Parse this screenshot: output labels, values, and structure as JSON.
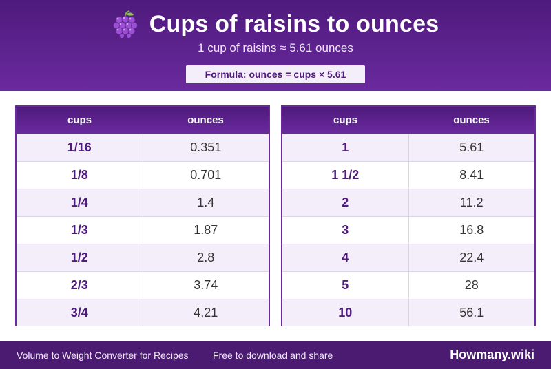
{
  "header": {
    "title": "Cups of raisins to ounces",
    "subtitle": "1 cup of raisins ≈ 5.61 ounces",
    "formula": "Formula: ounces = cups × 5.61",
    "icon": "grapes-icon"
  },
  "table_left": {
    "headers": [
      "cups",
      "ounces"
    ],
    "rows": [
      [
        "1/16",
        "0.351"
      ],
      [
        "1/8",
        "0.701"
      ],
      [
        "1/4",
        "1.4"
      ],
      [
        "1/3",
        "1.87"
      ],
      [
        "1/2",
        "2.8"
      ],
      [
        "2/3",
        "3.74"
      ],
      [
        "3/4",
        "4.21"
      ]
    ]
  },
  "table_right": {
    "headers": [
      "cups",
      "ounces"
    ],
    "rows": [
      [
        "1",
        "5.61"
      ],
      [
        "1 1/2",
        "8.41"
      ],
      [
        "2",
        "11.2"
      ],
      [
        "3",
        "16.8"
      ],
      [
        "4",
        "22.4"
      ],
      [
        "5",
        "28"
      ],
      [
        "10",
        "56.1"
      ]
    ]
  },
  "footer": {
    "left": "Volume to Weight Converter for Recipes",
    "middle": "Free to download and share",
    "brand": "Howmany.wiki"
  },
  "colors": {
    "primary": "#4e1a7c",
    "accent": "#6a2a9e",
    "row_alt": "#f3eef9"
  }
}
